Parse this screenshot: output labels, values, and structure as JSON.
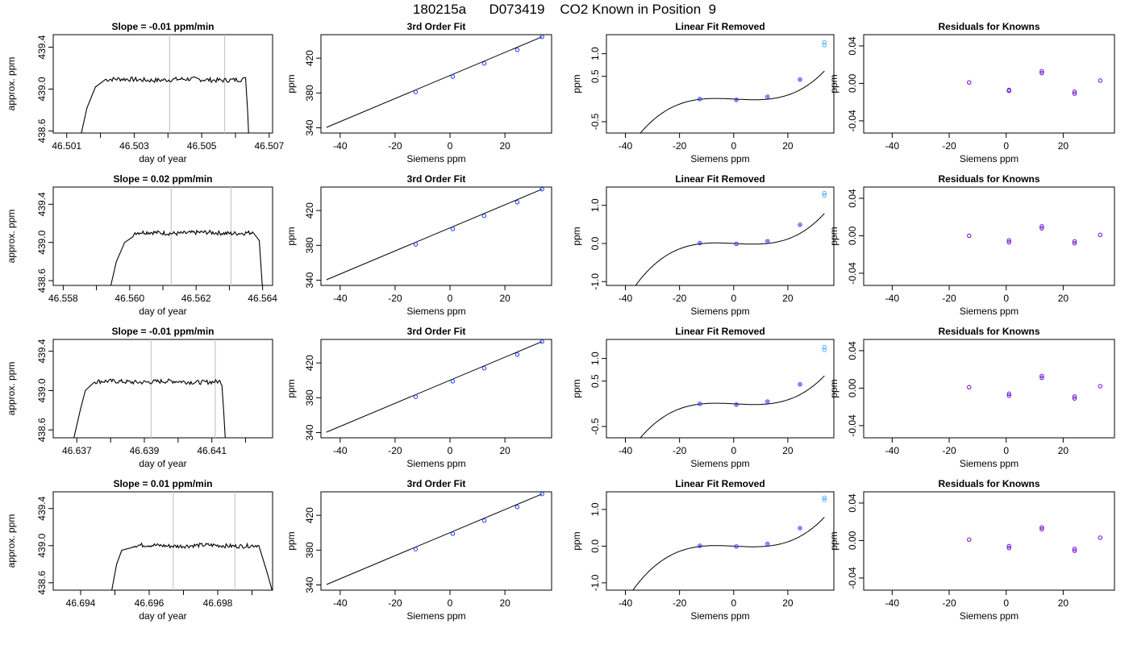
{
  "title": "180215a      D073419    CO2 Known in Position  9",
  "colors": {
    "axis": "#000000",
    "trace": "#000000",
    "vline": "#c8c8c8",
    "pt_blue": "#1f3cff",
    "pt_cyan": "#4fb3ff",
    "pt_purple": "#7a1fd6",
    "pt_red": "#ff2020"
  },
  "chart_data": [
    {
      "type": "line",
      "title": "Slope =  -0.01  ppm/min",
      "xlabel": "day of year",
      "ylabel": "approx. ppm",
      "xlim": [
        46.5006,
        46.5071
      ],
      "ylim": [
        438.58,
        439.52
      ],
      "xticks": [
        46.501,
        46.503,
        46.505,
        46.507
      ],
      "xticklabels": [
        "46.501",
        "46.503",
        "46.505",
        "46.507"
      ],
      "xminor": [
        46.502,
        46.504,
        46.506
      ],
      "yticks": [
        438.6,
        439.0,
        439.4
      ],
      "yticklabels": [
        "438.6",
        "439.0",
        "439.4"
      ],
      "vlines": [
        46.50405,
        46.50568
      ],
      "trace_start": 46.50138,
      "trace_end": 46.5064,
      "rise": [
        [
          46.50138,
          438.5
        ],
        [
          46.5016,
          438.82
        ],
        [
          46.50185,
          439.02
        ],
        [
          46.5021,
          439.08
        ]
      ],
      "plateau": 439.09,
      "fall": [
        [
          46.5063,
          439.11
        ],
        [
          46.50636,
          438.8
        ],
        [
          46.5064,
          438.5
        ]
      ]
    },
    {
      "type": "line",
      "title": "3rd Order Fit",
      "xlabel": "Siemens ppm",
      "ylabel": "ppm",
      "xlim": [
        -47,
        37
      ],
      "ylim": [
        334,
        447
      ],
      "xticks": [
        -40,
        -20,
        0,
        20
      ],
      "xticklabels": [
        "-40",
        "-20",
        "0",
        "20"
      ],
      "yticks": [
        340,
        380,
        420
      ],
      "yticklabels": [
        "340",
        "380",
        "420"
      ],
      "line": [
        [
          -45,
          340.5
        ],
        [
          33.5,
          444.5
        ]
      ],
      "points": [
        [
          -12.5,
          381.1
        ],
        [
          1,
          398.9
        ],
        [
          12.5,
          413.9
        ],
        [
          24.5,
          429.6
        ],
        [
          33.5,
          444.5
        ]
      ]
    },
    {
      "type": "line",
      "title": "Linear Fit Removed",
      "xlabel": "Siemens ppm",
      "ylabel": "ppm",
      "xlim": [
        -47,
        37
      ],
      "ylim": [
        -0.75,
        1.42
      ],
      "xticks": [
        -40,
        -20,
        0,
        20
      ],
      "xticklabels": [
        "-40",
        "-20",
        "0",
        "20"
      ],
      "yticks": [
        -0.5,
        0.5,
        1.0
      ],
      "yticklabels": [
        "-0.5",
        "0.5",
        "1.0"
      ],
      "curve": {
        "from": -45,
        "to": 33.5,
        "base": -0.0102,
        "amp": 0.0,
        "coef": [
          0.0,
          0.0,
          0.0,
          0.0
        ]
      },
      "poly": [
        0.0,
        -0.003,
        -3e-05,
        2e-05
      ],
      "points": [
        [
          -12.5,
          0.0
        ],
        [
          1,
          -0.02
        ],
        [
          12.5,
          0.05
        ],
        [
          24.5,
          0.43
        ],
        [
          33.5,
          1.25
        ],
        [
          33.5,
          1.19
        ]
      ]
    },
    {
      "type": "scatter",
      "title": "Residuals for Knowns",
      "xlabel": "Siemens ppm",
      "ylabel": "ppm",
      "xlim": [
        -50,
        38
      ],
      "ylim": [
        -0.053,
        0.052
      ],
      "xticks": [
        -40,
        -20,
        0,
        20
      ],
      "xticklabels": [
        "-40",
        "-20",
        "0",
        "20"
      ],
      "yticks": [
        -0.04,
        0.0,
        0.04
      ],
      "yticklabels": [
        "-0.04",
        "0.00",
        "0.04"
      ],
      "points": [
        [
          -13,
          0.001
        ],
        [
          1,
          -0.007
        ],
        [
          1,
          -0.008
        ],
        [
          12.5,
          0.011
        ],
        [
          12.5,
          0.013
        ],
        [
          24,
          -0.009
        ],
        [
          24,
          -0.011
        ],
        [
          33,
          0.003
        ]
      ]
    },
    {
      "type": "line",
      "title": "Slope =  0.02  ppm/min",
      "xlabel": "day of year",
      "ylabel": "approx. ppm",
      "xlim": [
        46.5577,
        46.5643
      ],
      "ylim": [
        438.55,
        439.58
      ],
      "xticks": [
        46.558,
        46.56,
        46.562,
        46.564
      ],
      "xticklabels": [
        "46.558",
        "46.560",
        "46.562",
        "46.564"
      ],
      "xminor": [
        46.559,
        46.561,
        46.563
      ],
      "yticks": [
        438.6,
        439.0,
        439.4
      ],
      "yticklabels": [
        "438.6",
        "439.0",
        "439.4"
      ],
      "vlines": [
        46.56125,
        46.56305
      ],
      "trace_start": 46.5594,
      "trace_end": 46.564,
      "rise": [
        [
          46.5594,
          438.5
        ],
        [
          46.5596,
          438.8
        ],
        [
          46.55985,
          439.0
        ],
        [
          46.5601,
          439.06
        ]
      ],
      "plateau": 439.1,
      "fall": [
        [
          46.5637,
          439.11
        ],
        [
          46.5639,
          439.02
        ],
        [
          46.564,
          438.5
        ]
      ]
    },
    {
      "type": "line",
      "title": "3rd Order Fit",
      "xlabel": "Siemens ppm",
      "ylabel": "ppm",
      "xlim": [
        -47,
        37
      ],
      "ylim": [
        334,
        447
      ],
      "xticks": [
        -40,
        -20,
        0,
        20
      ],
      "xticklabels": [
        "-40",
        "-20",
        "0",
        "20"
      ],
      "yticks": [
        340,
        380,
        420
      ],
      "yticklabels": [
        "340",
        "380",
        "420"
      ],
      "line": [
        [
          -45,
          340.5
        ],
        [
          33.5,
          444.5
        ]
      ],
      "points": [
        [
          -12.5,
          381.1
        ],
        [
          1,
          398.9
        ],
        [
          12.5,
          413.9
        ],
        [
          24.5,
          429.6
        ],
        [
          33.5,
          444.5
        ]
      ]
    },
    {
      "type": "line",
      "title": "Linear Fit Removed",
      "xlabel": "Siemens ppm",
      "ylabel": "ppm",
      "xlim": [
        -47,
        37
      ],
      "ylim": [
        -1.1,
        1.48
      ],
      "xticks": [
        -40,
        -20,
        0,
        20
      ],
      "xticklabels": [
        "-40",
        "-20",
        "0",
        "20"
      ],
      "yticks": [
        -1.0,
        0.0,
        1.0
      ],
      "yticklabels": [
        "-1.0",
        "0.0",
        "1.0"
      ],
      "poly": [
        0.0,
        -0.0035,
        -3e-05,
        2.5e-05
      ],
      "points": [
        [
          -12.5,
          0.01
        ],
        [
          1,
          -0.01
        ],
        [
          12.5,
          0.06
        ],
        [
          24.5,
          0.49
        ],
        [
          33.5,
          1.32
        ],
        [
          33.5,
          1.26
        ]
      ]
    },
    {
      "type": "scatter",
      "title": "Residuals for Knowns",
      "xlabel": "Siemens ppm",
      "ylabel": "ppm",
      "xlim": [
        -50,
        38
      ],
      "ylim": [
        -0.053,
        0.052
      ],
      "xticks": [
        -40,
        -20,
        0,
        20
      ],
      "xticklabels": [
        "-40",
        "-20",
        "0",
        "20"
      ],
      "yticks": [
        -0.04,
        0.0,
        0.04
      ],
      "yticklabels": [
        "-0.04",
        "0.00",
        "0.04"
      ],
      "points": [
        [
          -13,
          0.0
        ],
        [
          1,
          -0.005
        ],
        [
          1,
          -0.007
        ],
        [
          12.5,
          0.008
        ],
        [
          12.5,
          0.01
        ],
        [
          24,
          -0.006
        ],
        [
          24,
          -0.008
        ],
        [
          33,
          0.001
        ]
      ]
    },
    {
      "type": "line",
      "title": "Slope =  -0.01  ppm/min",
      "xlabel": "day of year",
      "ylabel": "approx. ppm",
      "xlim": [
        46.6363,
        46.6428
      ],
      "ylim": [
        438.52,
        439.52
      ],
      "xticks": [
        46.637,
        46.639,
        46.641
      ],
      "xticklabels": [
        "46.637",
        "46.639",
        "46.641"
      ],
      "xminor": [
        46.638,
        46.64,
        46.642
      ],
      "yticks": [
        438.6,
        439.0,
        439.4
      ],
      "yticklabels": [
        "438.6",
        "439.0",
        "439.4"
      ],
      "vlines": [
        46.6392,
        46.6411
      ],
      "trace_start": 46.6369,
      "trace_end": 46.6414,
      "rise": [
        [
          46.6369,
          438.5
        ],
        [
          46.6371,
          438.8
        ],
        [
          46.63725,
          439.0
        ],
        [
          46.6375,
          439.08
        ]
      ],
      "plateau": 439.09,
      "fall": [
        [
          46.6413,
          439.05
        ],
        [
          46.64135,
          438.8
        ],
        [
          46.6414,
          438.5
        ]
      ]
    },
    {
      "type": "line",
      "title": "3rd Order Fit",
      "xlabel": "Siemens ppm",
      "ylabel": "ppm",
      "xlim": [
        -47,
        37
      ],
      "ylim": [
        334,
        447
      ],
      "xticks": [
        -40,
        -20,
        0,
        20
      ],
      "xticklabels": [
        "-40",
        "-20",
        "0",
        "20"
      ],
      "yticks": [
        340,
        380,
        420
      ],
      "yticklabels": [
        "340",
        "380",
        "420"
      ],
      "line": [
        [
          -45,
          340.5
        ],
        [
          33.5,
          444.5
        ]
      ],
      "points": [
        [
          -12.5,
          381.1
        ],
        [
          1,
          398.9
        ],
        [
          12.5,
          413.9
        ],
        [
          24.5,
          429.6
        ],
        [
          33.5,
          444.5
        ]
      ]
    },
    {
      "type": "line",
      "title": "Linear Fit Removed",
      "xlabel": "Siemens ppm",
      "ylabel": "ppm",
      "xlim": [
        -47,
        37
      ],
      "ylim": [
        -0.75,
        1.42
      ],
      "xticks": [
        -40,
        -20,
        0,
        20
      ],
      "xticklabels": [
        "-40",
        "-20",
        "0",
        "20"
      ],
      "yticks": [
        -0.5,
        0.5,
        1.0
      ],
      "yticklabels": [
        "-0.5",
        "0.5",
        "1.0"
      ],
      "poly": [
        0.0,
        -0.003,
        -3e-05,
        2e-05
      ],
      "points": [
        [
          -12.5,
          0.0
        ],
        [
          1,
          -0.02
        ],
        [
          12.5,
          0.05
        ],
        [
          24.5,
          0.43
        ],
        [
          33.5,
          1.25
        ],
        [
          33.5,
          1.19
        ]
      ]
    },
    {
      "type": "scatter",
      "title": "Residuals for Knowns",
      "xlabel": "Siemens ppm",
      "ylabel": "ppm",
      "xlim": [
        -50,
        38
      ],
      "ylim": [
        -0.053,
        0.052
      ],
      "xticks": [
        -40,
        -20,
        0,
        20
      ],
      "xticklabels": [
        "-40",
        "-20",
        "0",
        "20"
      ],
      "yticks": [
        -0.04,
        0.0,
        0.04
      ],
      "yticklabels": [
        "-0.04",
        "0.00",
        "0.04"
      ],
      "points": [
        [
          -13,
          0.001
        ],
        [
          1,
          -0.006
        ],
        [
          1,
          -0.008
        ],
        [
          12.5,
          0.011
        ],
        [
          12.5,
          0.013
        ],
        [
          24,
          -0.009
        ],
        [
          24,
          -0.011
        ],
        [
          33,
          0.002
        ]
      ]
    },
    {
      "type": "line",
      "title": "Slope =  0.01  ppm/min",
      "xlabel": "day of year",
      "ylabel": "approx. ppm",
      "xlim": [
        46.6932,
        46.6996
      ],
      "ylim": [
        438.52,
        439.58
      ],
      "xticks": [
        46.694,
        46.696,
        46.698
      ],
      "xticklabels": [
        "46.694",
        "46.696",
        "46.698"
      ],
      "xminor": [
        46.695,
        46.697,
        46.699
      ],
      "yticks": [
        438.6,
        439.0,
        439.4
      ],
      "yticklabels": [
        "438.6",
        "439.0",
        "439.4"
      ],
      "vlines": [
        46.6967,
        46.6985
      ],
      "trace_start": 46.6949,
      "trace_end": 46.6996,
      "rise": [
        [
          46.6949,
          438.5
        ],
        [
          46.69505,
          438.8
        ],
        [
          46.6952,
          438.95
        ],
        [
          46.6955,
          438.98
        ]
      ],
      "plateau": 439.0,
      "fall": [
        [
          46.6992,
          439.0
        ],
        [
          46.69945,
          438.7
        ],
        [
          46.6996,
          438.5
        ]
      ]
    },
    {
      "type": "line",
      "title": "3rd Order Fit",
      "xlabel": "Siemens ppm",
      "ylabel": "ppm",
      "xlim": [
        -47,
        37
      ],
      "ylim": [
        334,
        447
      ],
      "xticks": [
        -40,
        -20,
        0,
        20
      ],
      "xticklabels": [
        "-40",
        "-20",
        "0",
        "20"
      ],
      "yticks": [
        340,
        380,
        420
      ],
      "yticklabels": [
        "340",
        "380",
        "420"
      ],
      "line": [
        [
          -45,
          340.5
        ],
        [
          33.5,
          444.5
        ]
      ],
      "points": [
        [
          -12.5,
          381.1
        ],
        [
          1,
          398.9
        ],
        [
          12.5,
          413.9
        ],
        [
          24.5,
          429.6
        ],
        [
          33.5,
          444.5
        ]
      ]
    },
    {
      "type": "line",
      "title": "Linear Fit Removed",
      "xlabel": "Siemens ppm",
      "ylabel": "ppm",
      "xlim": [
        -47,
        37
      ],
      "ylim": [
        -1.2,
        1.48
      ],
      "xticks": [
        -40,
        -20,
        0,
        20
      ],
      "xticklabels": [
        "-40",
        "-20",
        "0",
        "20"
      ],
      "yticks": [
        -1.0,
        0.0,
        1.0
      ],
      "yticklabels": [
        "-1.0",
        "0.0",
        "1.0"
      ],
      "poly": [
        0.0,
        -0.0035,
        -3e-05,
        2.5e-05
      ],
      "points": [
        [
          -12.5,
          0.01
        ],
        [
          1,
          -0.01
        ],
        [
          12.5,
          0.06
        ],
        [
          24.5,
          0.49
        ],
        [
          33.5,
          1.32
        ],
        [
          33.5,
          1.26
        ]
      ]
    },
    {
      "type": "scatter",
      "title": "Residuals for Knowns",
      "xlabel": "Siemens ppm",
      "ylabel": "ppm",
      "xlim": [
        -50,
        38
      ],
      "ylim": [
        -0.053,
        0.052
      ],
      "xticks": [
        -40,
        -20,
        0,
        20
      ],
      "xticklabels": [
        "-40",
        "-20",
        "0",
        "20"
      ],
      "yticks": [
        -0.04,
        0.0,
        0.04
      ],
      "yticklabels": [
        "-0.04",
        "0.00",
        "0.04"
      ],
      "points": [
        [
          -13,
          0.001
        ],
        [
          1,
          -0.006
        ],
        [
          1,
          -0.008
        ],
        [
          12.5,
          0.012
        ],
        [
          12.5,
          0.014
        ],
        [
          24,
          -0.009
        ],
        [
          24,
          -0.011
        ],
        [
          33,
          0.003
        ]
      ]
    }
  ]
}
